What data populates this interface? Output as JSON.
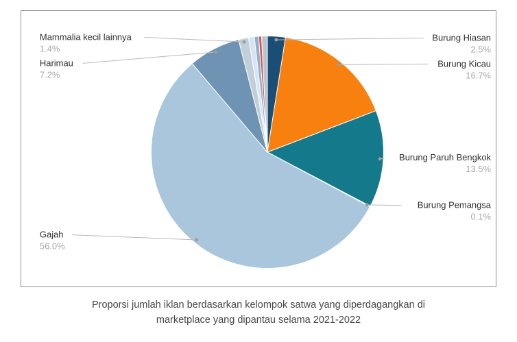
{
  "chart_data": {
    "type": "pie",
    "legend_position": "callout-labels",
    "caption_line1": "Proporsi jumlah iklan berdasarkan kelompok satwa yang diperdagangkan di",
    "caption_line2": "marketplace yang dipantau selama 2021-2022",
    "start_angle_deg": 0,
    "direction": "clockwise",
    "slices": [
      {
        "label": "Burung Hiasan",
        "pct_label": "2.5%",
        "value": 2.5,
        "color": "#1a4e76"
      },
      {
        "label": "Burung Kicau",
        "pct_label": "16.7%",
        "value": 16.7,
        "color": "#f8800f"
      },
      {
        "label": "Burung Paruh Bengkok",
        "pct_label": "13.5%",
        "value": 13.5,
        "color": "#15798c"
      },
      {
        "label": "Burung Pemangsa",
        "pct_label": "0.1%",
        "value": 0.1,
        "color": "#0f6e80"
      },
      {
        "label": "Gajah",
        "pct_label": "56.0%",
        "value": 56.0,
        "color": "#a9c6dd"
      },
      {
        "label": "Harimau",
        "pct_label": "7.2%",
        "value": 7.2,
        "color": "#6f94b3"
      },
      {
        "label": "Mammalia kecil lainnya",
        "pct_label": "1.4%",
        "value": 1.4,
        "color": "#c2cfdb"
      },
      {
        "label": "",
        "pct_label": "",
        "value": 0.8,
        "color": "#d8e4f0"
      },
      {
        "label": "",
        "pct_label": "",
        "value": 0.6,
        "color": "#8fb0cf"
      },
      {
        "label": "",
        "pct_label": "",
        "value": 0.4,
        "color": "#d9534f"
      },
      {
        "label": "",
        "pct_label": "",
        "value": 0.8,
        "color": "#b9c4ce"
      }
    ],
    "colors": {
      "leader_line": "#b9b9b9",
      "leader_dot": "#9b9b9b",
      "slice_separator": "#ffffff",
      "label_text": "#2f2f2f",
      "pct_text": "#a8a8a8",
      "frame_border": "#8f8f8f"
    }
  }
}
